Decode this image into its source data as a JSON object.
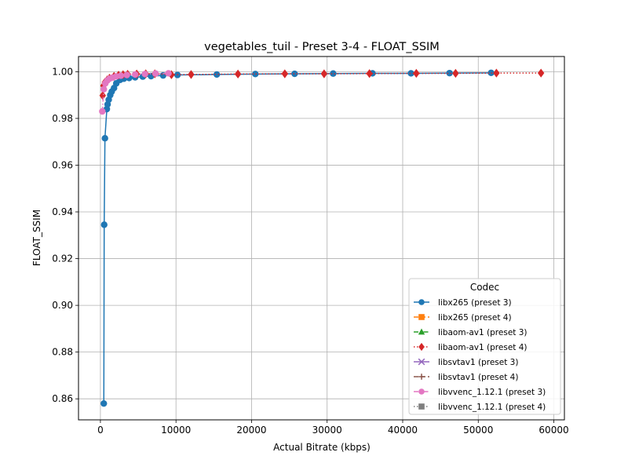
{
  "chart_data": {
    "type": "line",
    "title": "vegetables_tuil - Preset 3-4 - FLOAT_SSIM",
    "xlabel": "Actual Bitrate (kbps)",
    "ylabel": "FLOAT_SSIM",
    "xlim": [
      -2900,
      61400
    ],
    "ylim": [
      0.851,
      1.0065
    ],
    "x_ticks": [
      0,
      10000,
      20000,
      30000,
      40000,
      50000,
      60000
    ],
    "y_ticks": [
      0.86,
      0.88,
      0.9,
      0.92,
      0.94,
      0.96,
      0.98,
      1.0
    ],
    "x_tick_labels": [
      "0",
      "10000",
      "20000",
      "30000",
      "40000",
      "50000",
      "60000"
    ],
    "y_tick_labels": [
      "0.86",
      "0.88",
      "0.90",
      "0.92",
      "0.94",
      "0.96",
      "0.98",
      "1.00"
    ],
    "grid": true,
    "legend_title": "Codec",
    "legend_position": "lower-right",
    "series": [
      {
        "name": "libx265 (preset 3)",
        "color": "#1f77b4",
        "marker": "circle",
        "linestyle": "solid",
        "x": [
          450,
          500,
          600,
          850,
          950,
          1100,
          1300,
          1500,
          1800,
          2100,
          2600,
          3100,
          3800,
          4600,
          5600,
          6700,
          8300,
          10200,
          15400,
          20500,
          25700,
          30800,
          36000,
          41100,
          46200,
          51700
        ],
        "y": [
          0.858,
          0.9345,
          0.9715,
          0.984,
          0.986,
          0.988,
          0.99,
          0.9915,
          0.993,
          0.995,
          0.9965,
          0.997,
          0.9973,
          0.9976,
          0.9979,
          0.9981,
          0.9984,
          0.9986,
          0.9988,
          0.999,
          0.9991,
          0.9992,
          0.9993,
          0.9993,
          0.9994,
          0.9995
        ]
      },
      {
        "name": "libx265 (preset 4)",
        "color": "#ff7f0e",
        "marker": "square",
        "linestyle": "dashed",
        "x": [],
        "y": []
      },
      {
        "name": "libaom-av1 (preset 3)",
        "color": "#2ca02c",
        "marker": "triangle",
        "linestyle": "dashdot",
        "x": [],
        "y": []
      },
      {
        "name": "libaom-av1 (preset 4)",
        "color": "#d62728",
        "marker": "diamond",
        "linestyle": "dotted",
        "x": [
          300,
          400,
          600,
          900,
          1200,
          1800,
          2400,
          3000,
          3600,
          4800,
          6000,
          7200,
          9400,
          12000,
          18200,
          24400,
          29600,
          35600,
          41800,
          47000,
          52400,
          58300
        ],
        "y": [
          0.9898,
          0.994,
          0.9955,
          0.9965,
          0.9972,
          0.998,
          0.9985,
          0.9987,
          0.9989,
          0.999,
          0.9991,
          0.9991,
          0.9987,
          0.9988,
          0.999,
          0.9991,
          0.9991,
          0.9992,
          0.9993,
          0.9993,
          0.9994,
          0.9994
        ]
      },
      {
        "name": "libsvtav1 (preset 3)",
        "color": "#9467bd",
        "marker": "x",
        "linestyle": "solid",
        "x": [],
        "y": []
      },
      {
        "name": "libsvtav1 (preset 4)",
        "color": "#8c564b",
        "marker": "plus",
        "linestyle": "dashed",
        "x": [],
        "y": []
      },
      {
        "name": "libvvenc_1.12.1 (preset 3)",
        "color": "#e377c2",
        "marker": "circle",
        "linestyle": "dashdot",
        "x": [
          250,
          450,
          650,
          900,
          1200,
          1600,
          2100,
          2700,
          3500,
          4600,
          5900,
          7300,
          9000
        ],
        "y": [
          0.983,
          0.9925,
          0.995,
          0.9962,
          0.997,
          0.9975,
          0.998,
          0.9983,
          0.9986,
          0.9988,
          0.999,
          0.9992,
          0.9993
        ]
      },
      {
        "name": "libvvenc_1.12.1 (preset 4)",
        "color": "#7f7f7f",
        "marker": "square",
        "linestyle": "dotted",
        "x": [],
        "y": []
      }
    ]
  }
}
